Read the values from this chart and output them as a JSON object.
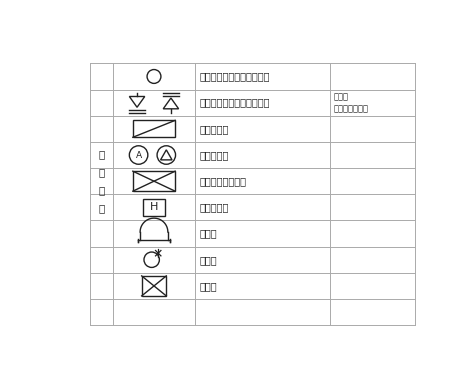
{
  "background_color": "#ffffff",
  "text_color": "#222222",
  "rows": [
    {
      "label": "スプリンクラー（平面図）",
      "note": ""
    },
    {
      "label": "スプリンクラー（系統図）",
      "note": "右から\n下向き、上向き"
    },
    {
      "label": "屋内消火栓",
      "note": ""
    },
    {
      "label": "アラーム弁",
      "note": ""
    },
    {
      "label": "連結送水管送水口",
      "note": ""
    },
    {
      "label": "屋外消火栓",
      "note": ""
    },
    {
      "label": "送水口",
      "note": ""
    },
    {
      "label": "放水口",
      "note": ""
    },
    {
      "label": "制御弁",
      "note": ""
    }
  ],
  "category_label": "消\n火\n関\n係",
  "line_color": "#aaaaaa",
  "line_width": 0.7,
  "font_size_label": 7.0,
  "font_size_note": 6.0,
  "font_size_cat": 7.5
}
